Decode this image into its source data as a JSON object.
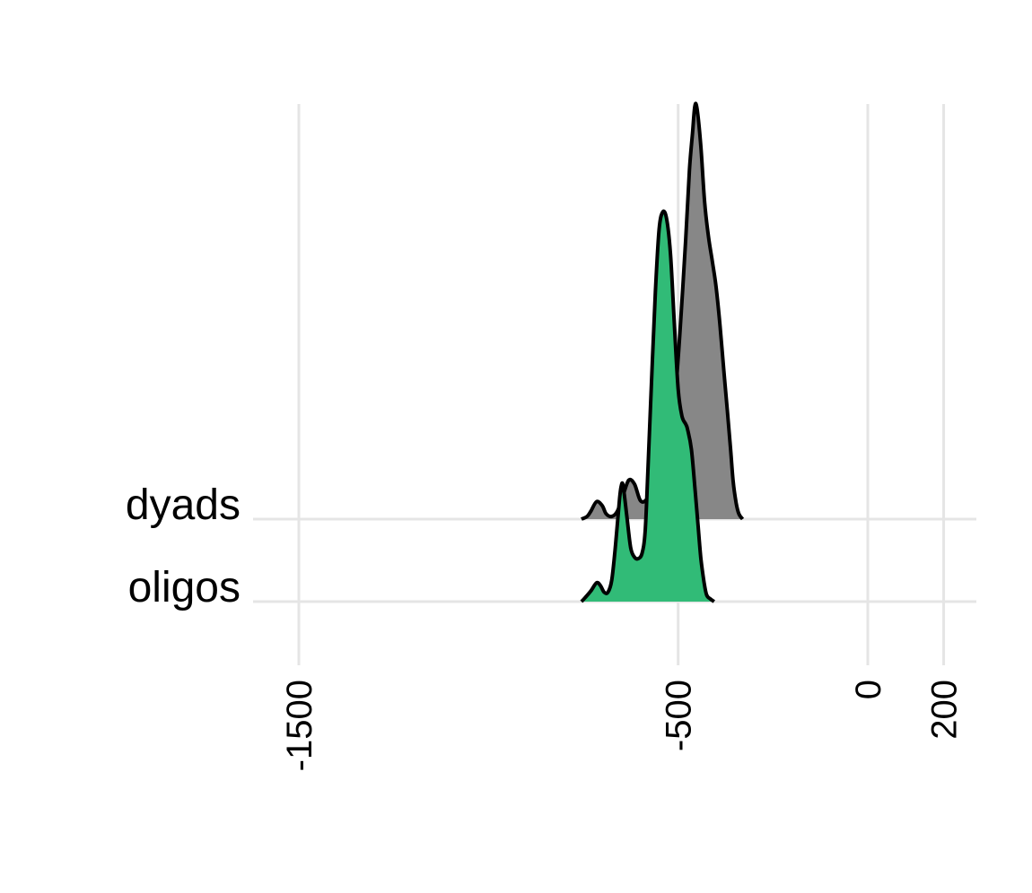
{
  "chart_data": {
    "type": "area",
    "subtype": "ridgeline-density",
    "title": "",
    "xlabel": "",
    "ylabel": "",
    "xlim": [
      -1610,
      285
    ],
    "x_ticks": [
      -1500,
      -500,
      0,
      200
    ],
    "grid": true,
    "legend": "none",
    "series": [
      {
        "name": "dyads",
        "color": "#878787",
        "points": [
          [
            -755,
            0.0
          ],
          [
            -740,
            0.02
          ],
          [
            -730,
            0.06
          ],
          [
            -715,
            0.13
          ],
          [
            -700,
            0.1
          ],
          [
            -690,
            0.04
          ],
          [
            -675,
            0.02
          ],
          [
            -660,
            0.06
          ],
          [
            -645,
            0.18
          ],
          [
            -630,
            0.29
          ],
          [
            -615,
            0.26
          ],
          [
            -600,
            0.14
          ],
          [
            -585,
            0.14
          ],
          [
            -570,
            0.22
          ],
          [
            -555,
            0.26
          ],
          [
            -540,
            0.3
          ],
          [
            -530,
            0.36
          ],
          [
            -520,
            0.49
          ],
          [
            -510,
            0.8
          ],
          [
            -495,
            1.4
          ],
          [
            -480,
            2.08
          ],
          [
            -470,
            2.6
          ],
          [
            -462,
            2.87
          ],
          [
            -456,
            3.07
          ],
          [
            -450,
            3.05
          ],
          [
            -440,
            2.77
          ],
          [
            -430,
            2.35
          ],
          [
            -420,
            2.1
          ],
          [
            -410,
            1.92
          ],
          [
            -400,
            1.73
          ],
          [
            -390,
            1.45
          ],
          [
            -380,
            1.12
          ],
          [
            -370,
            0.8
          ],
          [
            -362,
            0.53
          ],
          [
            -355,
            0.28
          ],
          [
            -347,
            0.12
          ],
          [
            -340,
            0.04
          ],
          [
            -330,
            0.0
          ]
        ]
      },
      {
        "name": "oligos",
        "color": "#31BB77",
        "points": [
          [
            -755,
            0.0
          ],
          [
            -745,
            0.03
          ],
          [
            -730,
            0.08
          ],
          [
            -715,
            0.14
          ],
          [
            -705,
            0.12
          ],
          [
            -695,
            0.07
          ],
          [
            -685,
            0.07
          ],
          [
            -675,
            0.16
          ],
          [
            -665,
            0.42
          ],
          [
            -655,
            0.75
          ],
          [
            -650,
            0.86
          ],
          [
            -645,
            0.86
          ],
          [
            -635,
            0.63
          ],
          [
            -625,
            0.4
          ],
          [
            -615,
            0.33
          ],
          [
            -605,
            0.32
          ],
          [
            -595,
            0.36
          ],
          [
            -587,
            0.52
          ],
          [
            -580,
            0.96
          ],
          [
            -570,
            1.65
          ],
          [
            -560,
            2.3
          ],
          [
            -550,
            2.77
          ],
          [
            -540,
            2.9
          ],
          [
            -530,
            2.84
          ],
          [
            -520,
            2.58
          ],
          [
            -510,
            2.07
          ],
          [
            -500,
            1.58
          ],
          [
            -490,
            1.38
          ],
          [
            -480,
            1.32
          ],
          [
            -475,
            1.28
          ],
          [
            -465,
            1.13
          ],
          [
            -455,
            0.82
          ],
          [
            -447,
            0.55
          ],
          [
            -440,
            0.32
          ],
          [
            -432,
            0.15
          ],
          [
            -425,
            0.05
          ],
          [
            -415,
            0.02
          ],
          [
            -405,
            0.0
          ]
        ]
      }
    ]
  },
  "y_labels": [
    "dyads",
    "oligos"
  ]
}
